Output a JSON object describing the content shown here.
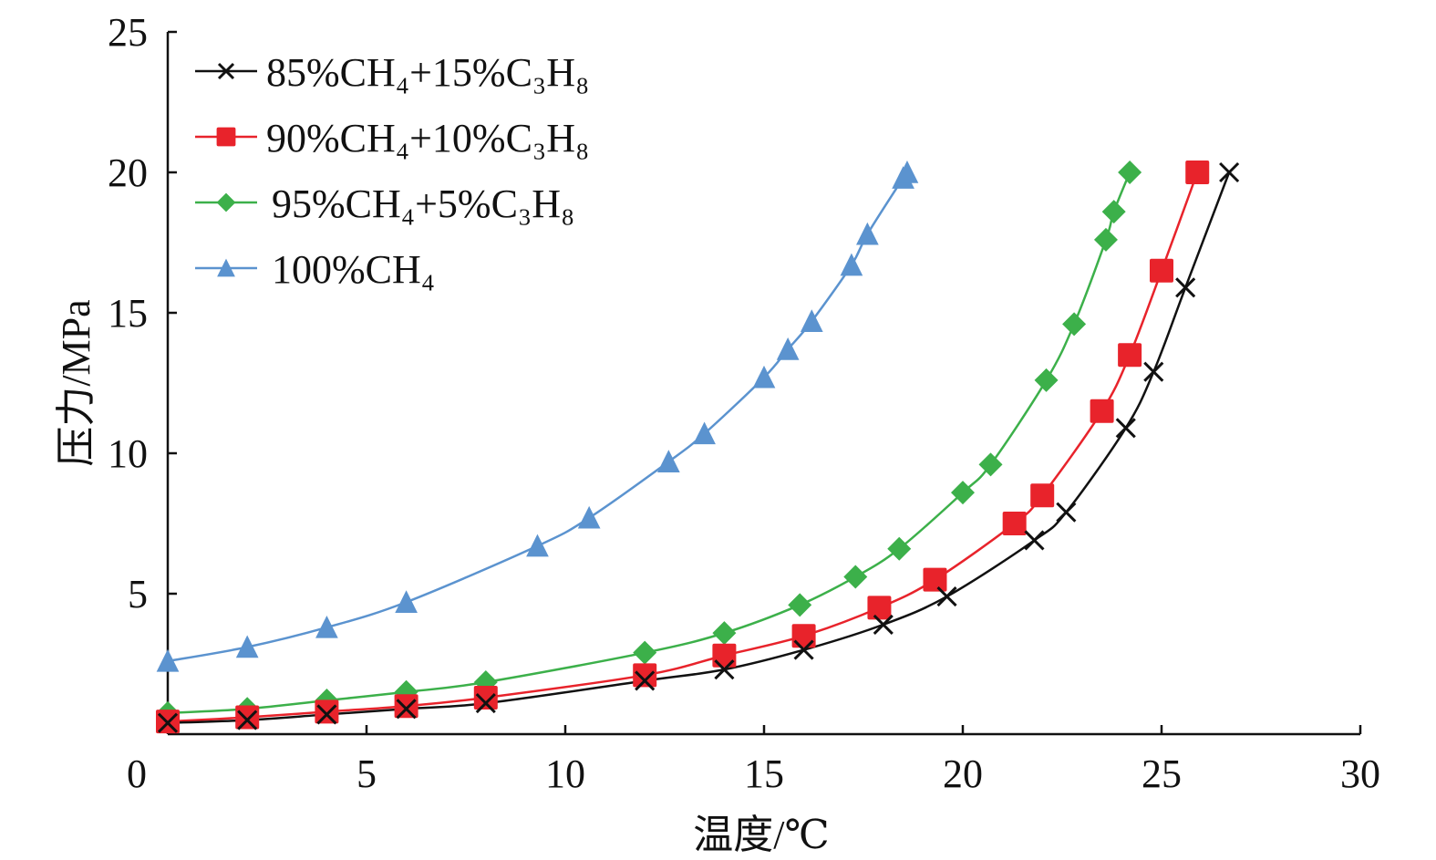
{
  "chart_data": {
    "type": "line",
    "title": "",
    "xlabel": "温度/℃",
    "ylabel": "压力/MPa",
    "xlim": [
      0,
      30
    ],
    "ylim": [
      0,
      25
    ],
    "xticks": [
      0,
      5,
      10,
      15,
      20,
      25,
      30
    ],
    "yticks": [
      5,
      10,
      15,
      20,
      25
    ],
    "grid": false,
    "legend_position": "top-left",
    "series": [
      {
        "name": "85%CH₄+15%C₃H₈",
        "color": "#111111",
        "marker": "x",
        "x": [
          0,
          2.0,
          4.0,
          6.0,
          8.0,
          12.0,
          14.0,
          16.0,
          18.0,
          19.6,
          21.8,
          22.6,
          24.1,
          24.8,
          25.6,
          26.7
        ],
        "y": [
          0.4,
          0.5,
          0.7,
          0.9,
          1.1,
          1.9,
          2.3,
          3.0,
          3.9,
          4.9,
          6.9,
          7.9,
          10.9,
          12.9,
          15.9,
          20.0
        ]
      },
      {
        "name": "90%CH₄+10%C₃H₈",
        "color": "#e8232b",
        "marker": "square",
        "x": [
          0,
          2.0,
          4.0,
          6.0,
          8.0,
          12.0,
          14.0,
          16.0,
          17.9,
          19.3,
          21.3,
          22.0,
          23.5,
          24.2,
          25.0,
          25.9
        ],
        "y": [
          0.45,
          0.6,
          0.8,
          1.0,
          1.3,
          2.1,
          2.8,
          3.5,
          4.5,
          5.5,
          7.5,
          8.5,
          11.5,
          13.5,
          16.5,
          20.0
        ]
      },
      {
        "name": "95%CH₄+5%C₃H₈",
        "color": "#3cb04a",
        "marker": "diamond",
        "x": [
          0,
          2.0,
          4.0,
          6.0,
          8.0,
          12.0,
          14.0,
          15.9,
          17.3,
          18.4,
          20.0,
          20.7,
          22.1,
          22.8,
          23.6,
          23.8,
          24.2
        ],
        "y": [
          0.75,
          0.9,
          1.2,
          1.5,
          1.85,
          2.9,
          3.6,
          4.6,
          5.6,
          6.6,
          8.6,
          9.6,
          12.6,
          14.6,
          17.6,
          18.6,
          20.0
        ]
      },
      {
        "name": "100%CH₄",
        "color": "#5b93cf",
        "marker": "triangle",
        "x": [
          0,
          2.0,
          4.0,
          6.0,
          9.3,
          10.6,
          12.6,
          13.5,
          15.0,
          15.6,
          16.2,
          17.2,
          17.6,
          18.5,
          18.6
        ],
        "y": [
          2.6,
          3.1,
          3.8,
          4.7,
          6.7,
          7.7,
          9.7,
          10.7,
          12.7,
          13.7,
          14.7,
          16.7,
          17.8,
          19.8,
          20.0
        ]
      }
    ]
  }
}
